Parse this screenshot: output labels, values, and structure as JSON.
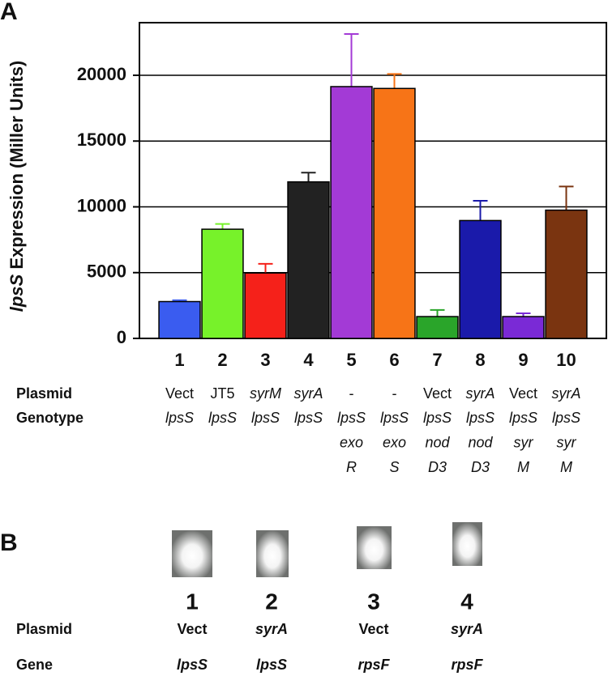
{
  "panel_labels": [
    "A",
    "B"
  ],
  "chart_data": {
    "type": "bar",
    "ylabel_gene": "lpsS",
    "ylabel": " Expression (Miller Units)",
    "categories": [
      "1",
      "2",
      "3",
      "4",
      "5",
      "6",
      "7",
      "8",
      "9",
      "10"
    ],
    "values": [
      2800,
      8300,
      4970,
      11900,
      19140,
      19000,
      1660,
      8960,
      1660,
      9750
    ],
    "errors": [
      100,
      400,
      700,
      700,
      4000,
      1100,
      500,
      1500,
      250,
      1800
    ],
    "colors": [
      "#3a5cf0",
      "#77f22a",
      "#f5211a",
      "#222222",
      "#a33ad6",
      "#f77417",
      "#2aa52a",
      "#1a1aaa",
      "#7a2ad6",
      "#7a3410"
    ],
    "ylim": [
      0,
      24000
    ],
    "yticks": [
      0,
      5000,
      10000,
      15000,
      20000
    ],
    "grid": true,
    "row_labels": [
      "Plasmid",
      "Genotype"
    ],
    "plasmid": [
      "Vect",
      "JT5",
      "syrM",
      "syrA",
      "-",
      "-",
      "Vect",
      "syrA",
      "Vect",
      "syrA"
    ],
    "plasmid_italic": [
      false,
      false,
      true,
      true,
      false,
      false,
      false,
      true,
      false,
      true
    ],
    "genotype": [
      [
        "lpsS"
      ],
      [
        "lpsS"
      ],
      [
        "lpsS"
      ],
      [
        "lpsS"
      ],
      [
        "lpsS",
        "exo",
        "R"
      ],
      [
        "lpsS",
        "exo",
        "S"
      ],
      [
        "lpsS",
        "nod",
        "D3"
      ],
      [
        "lpsS",
        "nod",
        "D3"
      ],
      [
        "lpsS",
        "syr",
        "M"
      ],
      [
        "lpsS",
        "syr",
        "M"
      ]
    ]
  },
  "gel": {
    "lanes": [
      "1",
      "2",
      "3",
      "4"
    ],
    "plasmid_label": "Plasmid",
    "plasmid": [
      "Vect",
      "syrA",
      "Vect",
      "syrA"
    ],
    "gene_label": "Gene",
    "gene": [
      "lpsS",
      "lpsS",
      "rpsF",
      "rpsF"
    ]
  }
}
